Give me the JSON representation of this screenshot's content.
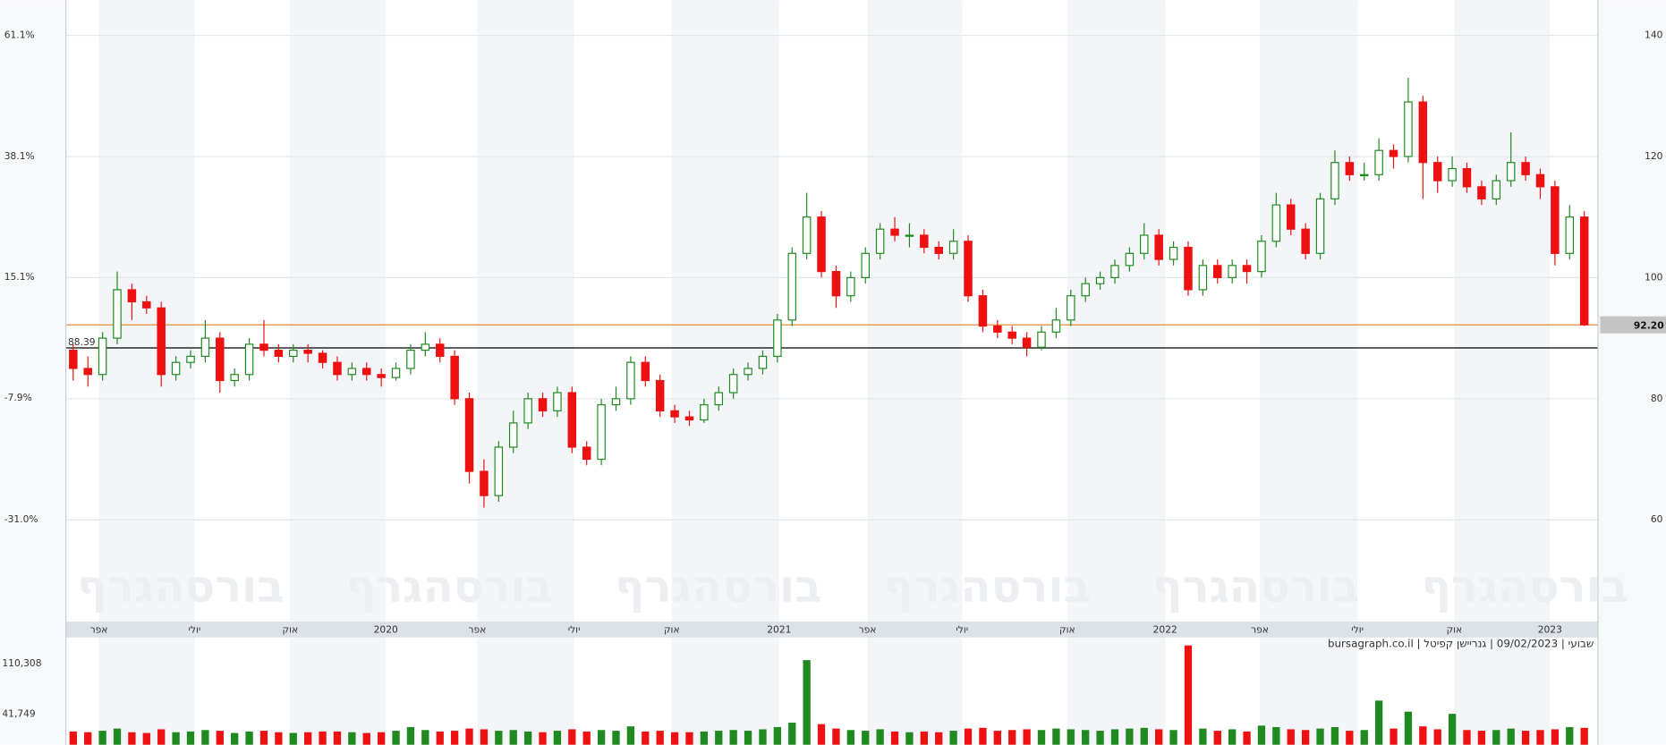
{
  "chart_data": {
    "type": "candlestick",
    "footer": "שבועי | 09/02/2023 | גנריישן קפיטל | bursagraph.co.il",
    "watermark": "בורסהגרף",
    "ylim": [
      43.2,
      145.8
    ],
    "yticks": [
      60,
      80,
      100,
      120,
      140
    ],
    "y2lim": [
      -50.4,
      67.8
    ],
    "y2ticks": [
      {
        "value": 61.1,
        "label": "61.1%"
      },
      {
        "value": 38.1,
        "label": "38.1%"
      },
      {
        "value": 15.1,
        "label": "15.1%"
      },
      {
        "value": -7.9,
        "label": "-7.9%"
      },
      {
        "value": -31,
        "label": "-31.0%"
      }
    ],
    "base_line": 88.39,
    "last_price": {
      "value": 92.2,
      "label": "92.20"
    },
    "xticks": [
      {
        "value": 1.75,
        "label": "אפר"
      },
      {
        "value": 8.27,
        "label": "יולי"
      },
      {
        "value": 14.79,
        "label": "אוק"
      },
      {
        "value": 21.31,
        "label": "2020"
      },
      {
        "value": 27.54,
        "label": "אפר"
      },
      {
        "value": 34.14,
        "label": "יולי"
      },
      {
        "value": 40.8,
        "label": "אוק"
      },
      {
        "value": 48.12,
        "label": "2021"
      },
      {
        "value": 54.14,
        "label": "אפר"
      },
      {
        "value": 60.59,
        "label": "יולי"
      },
      {
        "value": 67.76,
        "label": "אוק"
      },
      {
        "value": 74.43,
        "label": "2022"
      },
      {
        "value": 80.88,
        "label": "אפר"
      },
      {
        "value": 87.54,
        "label": "יולי"
      },
      {
        "value": 94.14,
        "label": "אוק"
      },
      {
        "value": 100.66,
        "label": "2023"
      }
    ],
    "up_color": "#1f8a1f",
    "down_color": "#ee1111",
    "candles": [
      [
        88,
        89,
        83,
        85
      ],
      [
        85,
        87,
        82,
        84
      ],
      [
        84,
        91,
        83,
        90
      ],
      [
        90,
        101,
        89,
        98
      ],
      [
        98,
        99,
        93,
        96
      ],
      [
        96,
        97,
        94,
        95
      ],
      [
        95,
        96,
        82,
        84
      ],
      [
        84,
        87,
        83,
        86
      ],
      [
        86,
        88,
        85,
        87
      ],
      [
        87,
        93,
        86,
        90
      ],
      [
        90,
        91,
        81,
        83
      ],
      [
        83,
        85,
        82,
        84
      ],
      [
        84,
        90,
        83,
        89
      ],
      [
        89,
        93,
        87,
        88
      ],
      [
        88,
        89,
        86,
        87
      ],
      [
        87,
        89,
        86,
        88
      ],
      [
        88,
        89,
        86,
        87.5
      ],
      [
        87.5,
        88,
        85,
        86
      ],
      [
        86,
        87,
        83,
        84
      ],
      [
        84,
        86,
        83,
        85
      ],
      [
        85,
        86,
        83,
        84
      ],
      [
        84,
        85,
        82,
        83.5
      ],
      [
        83.5,
        86,
        83,
        85
      ],
      [
        85,
        89,
        84,
        88
      ],
      [
        88,
        91,
        87,
        89
      ],
      [
        89,
        90,
        86,
        87
      ],
      [
        87,
        88,
        79,
        80
      ],
      [
        80,
        81,
        66,
        68
      ],
      [
        68,
        70,
        62,
        64
      ],
      [
        64,
        73,
        63,
        72
      ],
      [
        72,
        78,
        71,
        76
      ],
      [
        76,
        81,
        75,
        80
      ],
      [
        80,
        81,
        77,
        78
      ],
      [
        78,
        82,
        77,
        81
      ],
      [
        81,
        82,
        71,
        72
      ],
      [
        72,
        73,
        69,
        70
      ],
      [
        70,
        80,
        69,
        79
      ],
      [
        79,
        82,
        78,
        80
      ],
      [
        80,
        87,
        79,
        86
      ],
      [
        86,
        87,
        82,
        83
      ],
      [
        83,
        84,
        77,
        78
      ],
      [
        78,
        79,
        76,
        77
      ],
      [
        77,
        78,
        75.5,
        76.5
      ],
      [
        76.5,
        80,
        76,
        79
      ],
      [
        79,
        82,
        78,
        81
      ],
      [
        81,
        85,
        80,
        84
      ],
      [
        84,
        86,
        83,
        85
      ],
      [
        85,
        88,
        84,
        87
      ],
      [
        87,
        94,
        86,
        93
      ],
      [
        93,
        105,
        92,
        104
      ],
      [
        104,
        114,
        103,
        110
      ],
      [
        110,
        111,
        100,
        101
      ],
      [
        101,
        102,
        95,
        97
      ],
      [
        97,
        101,
        96,
        100
      ],
      [
        100,
        105,
        99,
        104
      ],
      [
        104,
        109,
        103,
        108
      ],
      [
        108,
        110,
        106,
        107
      ],
      [
        107,
        109,
        105,
        107
      ],
      [
        107,
        108,
        104,
        105
      ],
      [
        105,
        106,
        103,
        104
      ],
      [
        104,
        108,
        103,
        106
      ],
      [
        106,
        107,
        96,
        97
      ],
      [
        97,
        98,
        91,
        92
      ],
      [
        92,
        93,
        90,
        91
      ],
      [
        91,
        92,
        89,
        90
      ],
      [
        90,
        91,
        87,
        88.5
      ],
      [
        88.5,
        92,
        88,
        91
      ],
      [
        91,
        95,
        90,
        93
      ],
      [
        93,
        98,
        92,
        97
      ],
      [
        97,
        100,
        96,
        99
      ],
      [
        99,
        101,
        98,
        100
      ],
      [
        100,
        103,
        99,
        102
      ],
      [
        102,
        105,
        101,
        104
      ],
      [
        104,
        109,
        103,
        107
      ],
      [
        107,
        108,
        102,
        103
      ],
      [
        103,
        106,
        102,
        105
      ],
      [
        105,
        106,
        97,
        98
      ],
      [
        98,
        103,
        97,
        102
      ],
      [
        102,
        103,
        99,
        100
      ],
      [
        100,
        103,
        99,
        102
      ],
      [
        102,
        103,
        99,
        101
      ],
      [
        101,
        107,
        100,
        106
      ],
      [
        106,
        114,
        105,
        112
      ],
      [
        112,
        113,
        107,
        108
      ],
      [
        108,
        109,
        103,
        104
      ],
      [
        104,
        114,
        103,
        113
      ],
      [
        113,
        121,
        112,
        119
      ],
      [
        119,
        120,
        116,
        117
      ],
      [
        117,
        119,
        116,
        117
      ],
      [
        117,
        123,
        116,
        121
      ],
      [
        121,
        122,
        118,
        120
      ],
      [
        120,
        133,
        119,
        129
      ],
      [
        129,
        130,
        113,
        119
      ],
      [
        119,
        120,
        114,
        116
      ],
      [
        116,
        120,
        115,
        118
      ],
      [
        118,
        119,
        114,
        115
      ],
      [
        115,
        116,
        112,
        113
      ],
      [
        113,
        117,
        112,
        116
      ],
      [
        116,
        124,
        115,
        119
      ],
      [
        119,
        120,
        116,
        117
      ],
      [
        117,
        118,
        113,
        115
      ],
      [
        115,
        116,
        102,
        104
      ],
      [
        104,
        112,
        103,
        110
      ],
      [
        110,
        111,
        92,
        92.2
      ]
    ],
    "vlim": [
      0,
      140000
    ],
    "vticks": [
      {
        "value": 110308,
        "label": "110,308"
      },
      {
        "value": 41749,
        "label": "41,749"
      }
    ],
    "volumes": [
      18000,
      17000,
      19000,
      22000,
      17000,
      16000,
      21000,
      17000,
      18000,
      20000,
      19000,
      16000,
      18000,
      19000,
      17000,
      16000,
      17000,
      18000,
      18000,
      17000,
      16000,
      17000,
      19000,
      24000,
      20000,
      18000,
      19000,
      22000,
      21000,
      19000,
      20000,
      18000,
      17000,
      19000,
      21000,
      18000,
      20000,
      19000,
      25000,
      18000,
      19000,
      17000,
      17000,
      18000,
      19000,
      20000,
      19000,
      21000,
      24000,
      30000,
      115000,
      28000,
      22000,
      20000,
      19000,
      21000,
      18000,
      17000,
      18000,
      17000,
      19000,
      22000,
      23000,
      19000,
      20000,
      21000,
      20000,
      22000,
      21000,
      20000,
      19000,
      21000,
      22000,
      23000,
      21000,
      20000,
      135000,
      22000,
      19000,
      21000,
      18000,
      26000,
      24000,
      21000,
      20000,
      22000,
      24000,
      19000,
      20000,
      60000,
      22000,
      45000,
      25000,
      21000,
      42000,
      20000,
      19000,
      20000,
      22000,
      19000,
      20000,
      21000,
      24000,
      23000
    ]
  }
}
